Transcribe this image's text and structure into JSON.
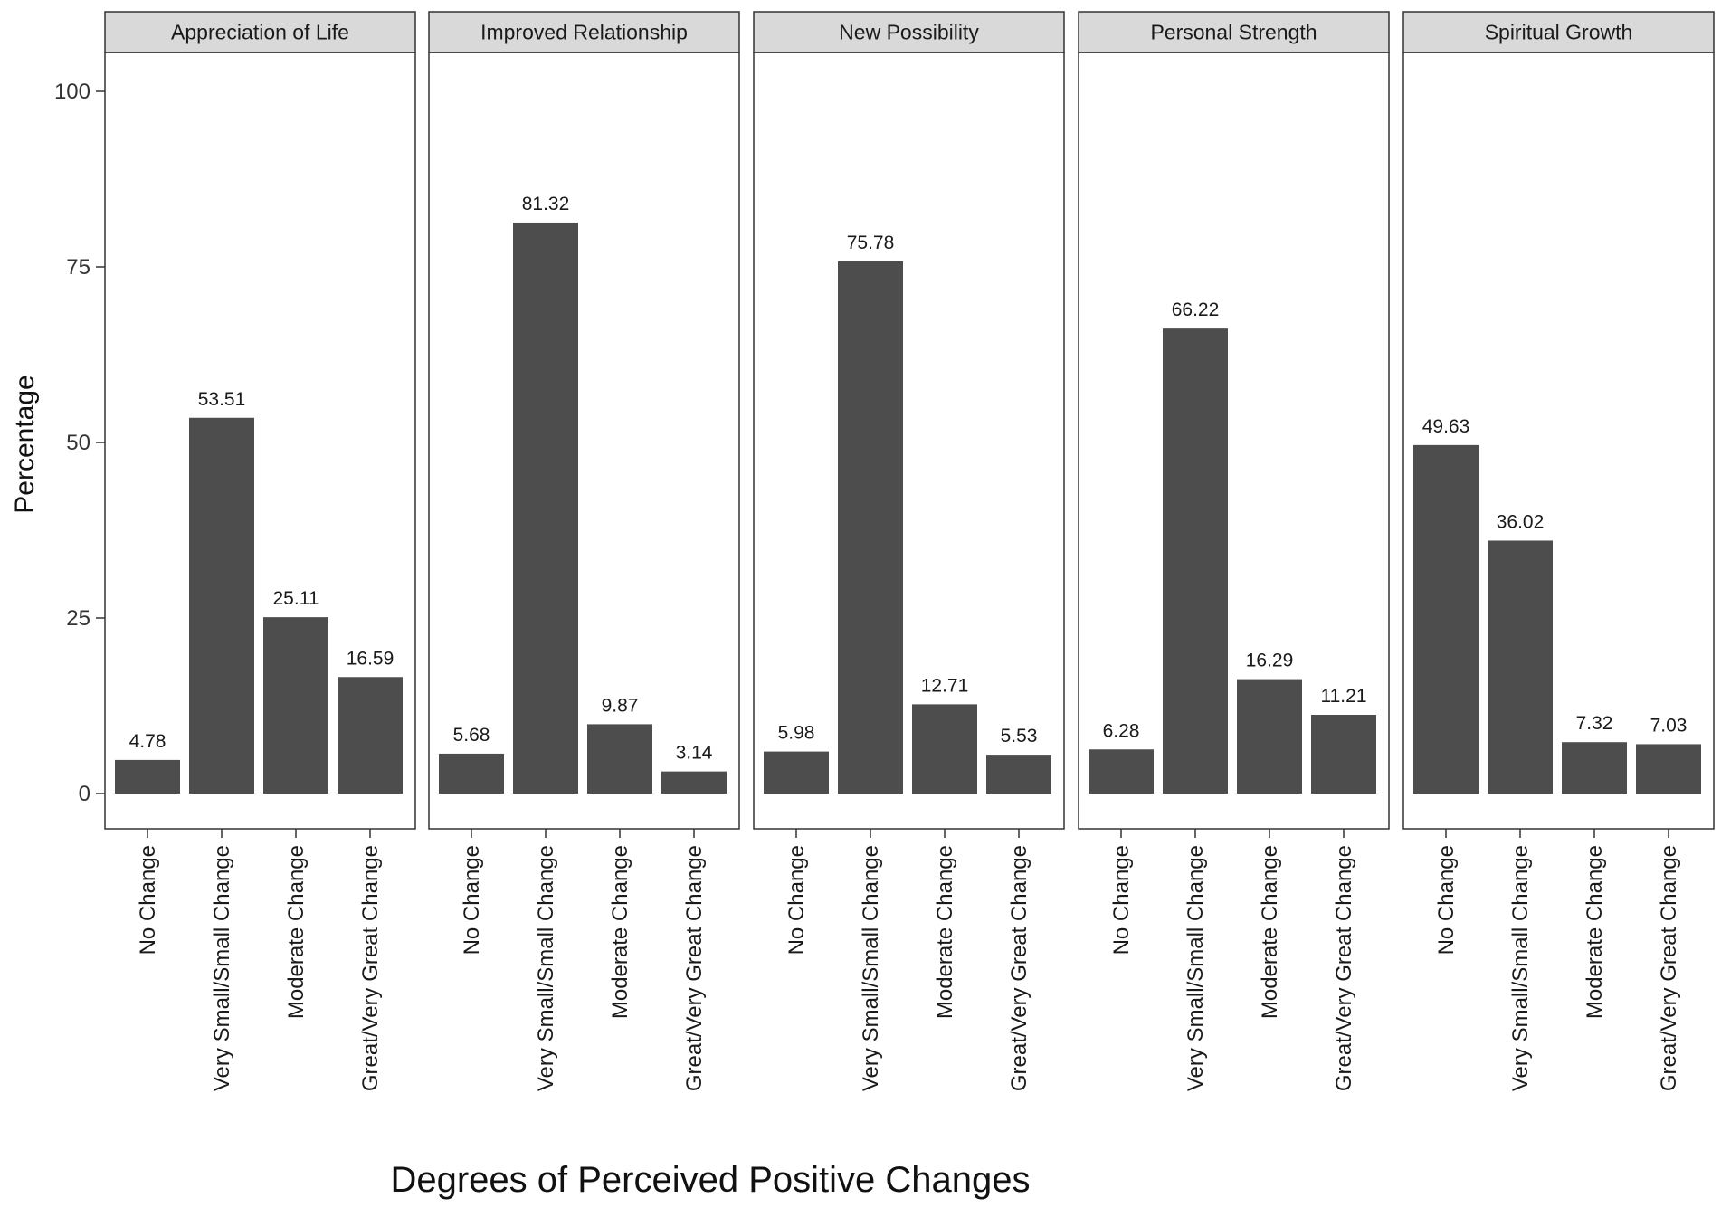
{
  "chart_data": {
    "type": "bar",
    "faceted": true,
    "xlabel": "Degrees of Perceived Positive Changes",
    "ylabel": "Percentage",
    "ylim": [
      0,
      100
    ],
    "yticks": [
      0,
      25,
      50,
      75,
      100
    ],
    "categories": [
      "No Change",
      "Very Small/Small Change",
      "Moderate Change",
      "Great/Very Great Change"
    ],
    "bar_color": "#4d4d4d",
    "strip_color": "#d9d9d9",
    "panels": [
      {
        "name": "Appreciation of Life",
        "values": [
          4.78,
          53.51,
          25.11,
          16.59
        ],
        "labels": [
          "4.78",
          "53.51",
          "25.11",
          "16.59"
        ]
      },
      {
        "name": "Improved Relationship",
        "values": [
          5.68,
          81.32,
          9.87,
          3.14
        ],
        "labels": [
          "5.68",
          "81.32",
          "9.87",
          "3.14"
        ]
      },
      {
        "name": "New Possibility",
        "values": [
          5.98,
          75.78,
          12.71,
          5.53
        ],
        "labels": [
          "5.98",
          "75.78",
          "12.71",
          "5.53"
        ]
      },
      {
        "name": "Personal Strength",
        "values": [
          6.28,
          66.22,
          16.29,
          11.21
        ],
        "labels": [
          "6.28",
          "66.22",
          "16.29",
          "11.21"
        ]
      },
      {
        "name": "Spiritual Growth",
        "values": [
          49.63,
          36.02,
          7.32,
          7.03
        ],
        "labels": [
          "49.63",
          "36.02",
          "7.32",
          "7.03"
        ]
      }
    ]
  }
}
